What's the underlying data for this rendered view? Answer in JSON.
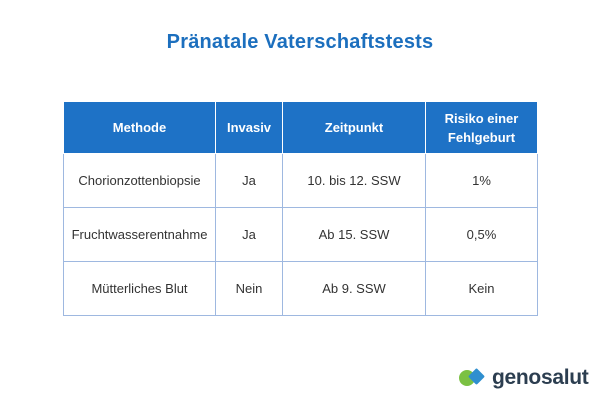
{
  "title": "Pränatale Vaterschaftstests",
  "table": {
    "headers": [
      "Methode",
      "Invasiv",
      "Zeitpunkt",
      "Risiko einer Fehlgeburt"
    ],
    "rows": [
      [
        "Chorionzottenbiopsie",
        "Ja",
        "10. bis 12. SSW",
        "1%"
      ],
      [
        "Fruchtwasserentnahme",
        "Ja",
        "Ab 15. SSW",
        "0,5%"
      ],
      [
        "Mütterliches Blut",
        "Nein",
        "Ab 9. SSW",
        "Kein"
      ]
    ]
  },
  "brand": {
    "name": "genosalut",
    "icon": "genosalut-logo-icon",
    "colors": [
      "#7bc143",
      "#2f8fcf"
    ]
  },
  "colors": {
    "title": "#1c6fbe",
    "header_bg": "#1e72c6",
    "header_text": "#ffffff",
    "cell_border": "#9eb8e0",
    "cell_text": "#333333"
  }
}
